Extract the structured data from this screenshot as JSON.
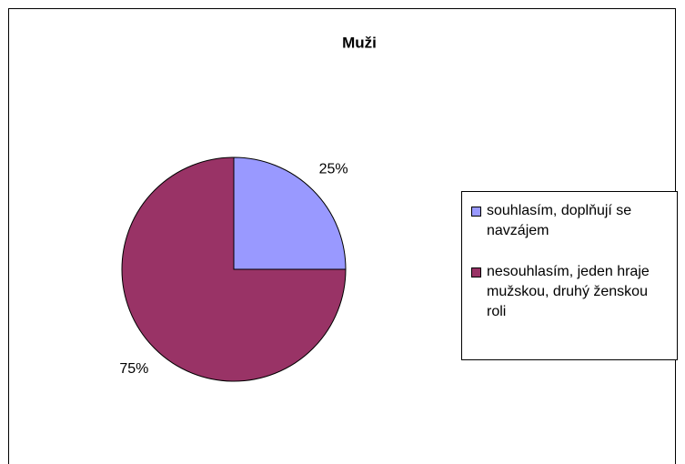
{
  "chart_data": {
    "type": "pie",
    "title": "Muži",
    "categories": [
      "souhlasím, doplňují se navzájem",
      "nesouhlasím, jeden hraje mužskou, druhý ženskou roli"
    ],
    "values": [
      25,
      75
    ],
    "value_labels": [
      "25%",
      "75%"
    ],
    "colors": [
      "#9999ff",
      "#993366"
    ],
    "legend": "right"
  }
}
